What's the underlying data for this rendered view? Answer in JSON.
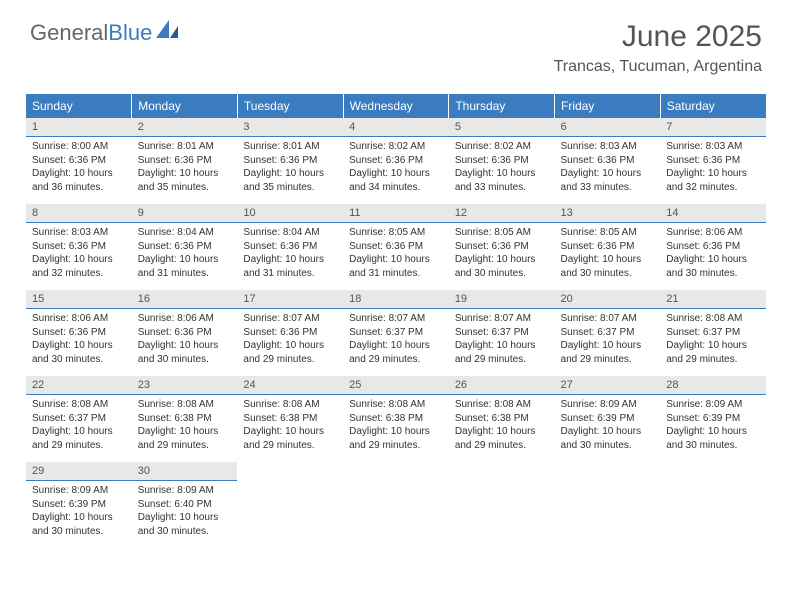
{
  "brand": {
    "part1": "General",
    "part2": "Blue"
  },
  "title": "June 2025",
  "location": "Trancas, Tucuman, Argentina",
  "colors": {
    "header_bg": "#3b7bbf",
    "header_text": "#ffffff",
    "daynum_bg": "#e8e8e8",
    "daynum_border": "#3b7bbf",
    "body_text": "#333333",
    "title_text": "#555555",
    "brand_blue": "#3b7bbf",
    "page_bg": "#ffffff"
  },
  "typography": {
    "title_fontsize": 30,
    "location_fontsize": 16,
    "header_fontsize": 12,
    "daynum_fontsize": 11,
    "cell_fontsize": 10
  },
  "weekdays": [
    "Sunday",
    "Monday",
    "Tuesday",
    "Wednesday",
    "Thursday",
    "Friday",
    "Saturday"
  ],
  "weeks": [
    [
      {
        "day": "1",
        "sunrise": "Sunrise: 8:00 AM",
        "sunset": "Sunset: 6:36 PM",
        "daylight": "Daylight: 10 hours and 36 minutes."
      },
      {
        "day": "2",
        "sunrise": "Sunrise: 8:01 AM",
        "sunset": "Sunset: 6:36 PM",
        "daylight": "Daylight: 10 hours and 35 minutes."
      },
      {
        "day": "3",
        "sunrise": "Sunrise: 8:01 AM",
        "sunset": "Sunset: 6:36 PM",
        "daylight": "Daylight: 10 hours and 35 minutes."
      },
      {
        "day": "4",
        "sunrise": "Sunrise: 8:02 AM",
        "sunset": "Sunset: 6:36 PM",
        "daylight": "Daylight: 10 hours and 34 minutes."
      },
      {
        "day": "5",
        "sunrise": "Sunrise: 8:02 AM",
        "sunset": "Sunset: 6:36 PM",
        "daylight": "Daylight: 10 hours and 33 minutes."
      },
      {
        "day": "6",
        "sunrise": "Sunrise: 8:03 AM",
        "sunset": "Sunset: 6:36 PM",
        "daylight": "Daylight: 10 hours and 33 minutes."
      },
      {
        "day": "7",
        "sunrise": "Sunrise: 8:03 AM",
        "sunset": "Sunset: 6:36 PM",
        "daylight": "Daylight: 10 hours and 32 minutes."
      }
    ],
    [
      {
        "day": "8",
        "sunrise": "Sunrise: 8:03 AM",
        "sunset": "Sunset: 6:36 PM",
        "daylight": "Daylight: 10 hours and 32 minutes."
      },
      {
        "day": "9",
        "sunrise": "Sunrise: 8:04 AM",
        "sunset": "Sunset: 6:36 PM",
        "daylight": "Daylight: 10 hours and 31 minutes."
      },
      {
        "day": "10",
        "sunrise": "Sunrise: 8:04 AM",
        "sunset": "Sunset: 6:36 PM",
        "daylight": "Daylight: 10 hours and 31 minutes."
      },
      {
        "day": "11",
        "sunrise": "Sunrise: 8:05 AM",
        "sunset": "Sunset: 6:36 PM",
        "daylight": "Daylight: 10 hours and 31 minutes."
      },
      {
        "day": "12",
        "sunrise": "Sunrise: 8:05 AM",
        "sunset": "Sunset: 6:36 PM",
        "daylight": "Daylight: 10 hours and 30 minutes."
      },
      {
        "day": "13",
        "sunrise": "Sunrise: 8:05 AM",
        "sunset": "Sunset: 6:36 PM",
        "daylight": "Daylight: 10 hours and 30 minutes."
      },
      {
        "day": "14",
        "sunrise": "Sunrise: 8:06 AM",
        "sunset": "Sunset: 6:36 PM",
        "daylight": "Daylight: 10 hours and 30 minutes."
      }
    ],
    [
      {
        "day": "15",
        "sunrise": "Sunrise: 8:06 AM",
        "sunset": "Sunset: 6:36 PM",
        "daylight": "Daylight: 10 hours and 30 minutes."
      },
      {
        "day": "16",
        "sunrise": "Sunrise: 8:06 AM",
        "sunset": "Sunset: 6:36 PM",
        "daylight": "Daylight: 10 hours and 30 minutes."
      },
      {
        "day": "17",
        "sunrise": "Sunrise: 8:07 AM",
        "sunset": "Sunset: 6:36 PM",
        "daylight": "Daylight: 10 hours and 29 minutes."
      },
      {
        "day": "18",
        "sunrise": "Sunrise: 8:07 AM",
        "sunset": "Sunset: 6:37 PM",
        "daylight": "Daylight: 10 hours and 29 minutes."
      },
      {
        "day": "19",
        "sunrise": "Sunrise: 8:07 AM",
        "sunset": "Sunset: 6:37 PM",
        "daylight": "Daylight: 10 hours and 29 minutes."
      },
      {
        "day": "20",
        "sunrise": "Sunrise: 8:07 AM",
        "sunset": "Sunset: 6:37 PM",
        "daylight": "Daylight: 10 hours and 29 minutes."
      },
      {
        "day": "21",
        "sunrise": "Sunrise: 8:08 AM",
        "sunset": "Sunset: 6:37 PM",
        "daylight": "Daylight: 10 hours and 29 minutes."
      }
    ],
    [
      {
        "day": "22",
        "sunrise": "Sunrise: 8:08 AM",
        "sunset": "Sunset: 6:37 PM",
        "daylight": "Daylight: 10 hours and 29 minutes."
      },
      {
        "day": "23",
        "sunrise": "Sunrise: 8:08 AM",
        "sunset": "Sunset: 6:38 PM",
        "daylight": "Daylight: 10 hours and 29 minutes."
      },
      {
        "day": "24",
        "sunrise": "Sunrise: 8:08 AM",
        "sunset": "Sunset: 6:38 PM",
        "daylight": "Daylight: 10 hours and 29 minutes."
      },
      {
        "day": "25",
        "sunrise": "Sunrise: 8:08 AM",
        "sunset": "Sunset: 6:38 PM",
        "daylight": "Daylight: 10 hours and 29 minutes."
      },
      {
        "day": "26",
        "sunrise": "Sunrise: 8:08 AM",
        "sunset": "Sunset: 6:38 PM",
        "daylight": "Daylight: 10 hours and 29 minutes."
      },
      {
        "day": "27",
        "sunrise": "Sunrise: 8:09 AM",
        "sunset": "Sunset: 6:39 PM",
        "daylight": "Daylight: 10 hours and 30 minutes."
      },
      {
        "day": "28",
        "sunrise": "Sunrise: 8:09 AM",
        "sunset": "Sunset: 6:39 PM",
        "daylight": "Daylight: 10 hours and 30 minutes."
      }
    ],
    [
      {
        "day": "29",
        "sunrise": "Sunrise: 8:09 AM",
        "sunset": "Sunset: 6:39 PM",
        "daylight": "Daylight: 10 hours and 30 minutes."
      },
      {
        "day": "30",
        "sunrise": "Sunrise: 8:09 AM",
        "sunset": "Sunset: 6:40 PM",
        "daylight": "Daylight: 10 hours and 30 minutes."
      },
      null,
      null,
      null,
      null,
      null
    ]
  ]
}
